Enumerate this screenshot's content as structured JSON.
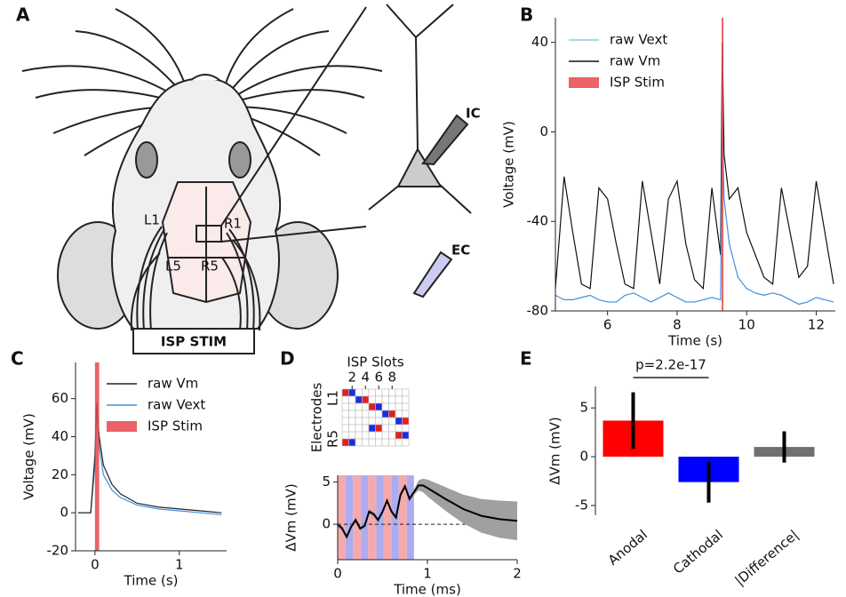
{
  "figure_diagram": {
    "panel_label": "A",
    "electrode_labels": [
      "L1",
      "R1",
      "L5",
      "R5"
    ],
    "stim_label": "ISP STIM",
    "ic_label": "IC",
    "ec_label": "EC"
  },
  "chart_data": [
    {
      "type": "line",
      "panel_label": "B",
      "x_label": "Time (s)",
      "y_label": "Voltage (mV)",
      "xlim": [
        4.5,
        12.55
      ],
      "ylim": [
        -80,
        51
      ],
      "xticks": [
        6,
        8,
        10,
        12
      ],
      "yticks": [
        -80,
        -40,
        0,
        40
      ],
      "legend": "upper left",
      "x": [
        4.5,
        4.75,
        5,
        5.25,
        5.5,
        5.75,
        6,
        6.25,
        6.5,
        6.75,
        7,
        7.25,
        7.5,
        7.75,
        8,
        8.25,
        8.5,
        8.75,
        9,
        9.25,
        9.3,
        9.35,
        9.5,
        9.75,
        10,
        10.25,
        10.5,
        10.75,
        11,
        11.25,
        11.5,
        11.75,
        12,
        12.25,
        12.5
      ],
      "series": [
        {
          "name": "raw Vext",
          "color": "#3d8fe0",
          "legend_color": "#8ccbe8",
          "values": [
            -73,
            -75,
            -75,
            -74,
            -73,
            -75,
            -76,
            -76,
            -73,
            -72,
            -74,
            -76,
            -74,
            -72,
            -74,
            -76,
            -76,
            -75,
            -74,
            -75,
            5,
            -30,
            -50,
            -65,
            -70,
            -72,
            -73,
            -72,
            -73,
            -75,
            -77,
            -76,
            -74,
            -75,
            -76
          ]
        },
        {
          "name": "raw Vm",
          "color": "#111111",
          "values": [
            -70,
            -20,
            -45,
            -68,
            -70,
            -25,
            -30,
            -50,
            -68,
            -70,
            -22,
            -45,
            -68,
            -30,
            -22,
            -50,
            -66,
            -70,
            -25,
            -55,
            40,
            -10,
            -30,
            -25,
            -45,
            -55,
            -65,
            -68,
            -25,
            -45,
            -65,
            -60,
            -22,
            -45,
            -68
          ]
        }
      ],
      "stim": {
        "name": "ISP Stim",
        "color": "#e8474c",
        "span": [
          9.28,
          9.32
        ]
      }
    },
    {
      "type": "line",
      "panel_label": "C",
      "x_label": "Time (s)",
      "y_label": "Voltage (mV)",
      "xlim": [
        -0.23,
        1.56
      ],
      "ylim": [
        -20,
        79
      ],
      "xticks": [
        0,
        1
      ],
      "yticks": [
        -20,
        0,
        20,
        40,
        60
      ],
      "legend": "upper right",
      "x": [
        -0.2,
        -0.05,
        0,
        0.02,
        0.05,
        0.1,
        0.2,
        0.3,
        0.5,
        0.75,
        1,
        1.25,
        1.5
      ],
      "series": [
        {
          "name": "raw Vm",
          "color": "#222222",
          "values": [
            0,
            0,
            30,
            58,
            40,
            25,
            15,
            10,
            5,
            3,
            2,
            1,
            0
          ]
        },
        {
          "name": "raw Vext",
          "color": "#3d8fe0",
          "values": [
            0,
            0,
            25,
            55,
            35,
            20,
            12,
            8,
            4,
            2,
            1,
            0,
            -1
          ]
        }
      ],
      "stim": {
        "name": "ISP Stim",
        "color": "#e8474c",
        "span": [
          0,
          0.05
        ]
      }
    },
    {
      "type": "grid",
      "panel_label": "D",
      "title": "ISP Slots",
      "y_label": "Electrodes",
      "xlim": [
        0.5,
        10.5
      ],
      "xticks": [
        2,
        4,
        6,
        8
      ],
      "row_labels": [
        "L1",
        null,
        null,
        null,
        null,
        null,
        null,
        "R5"
      ],
      "anodal_color": "#e0201c",
      "cathodal_color": "#1a2ee0",
      "cells": [
        [
          1,
          -1,
          0,
          0,
          0,
          0,
          0,
          0,
          0,
          0
        ],
        [
          0,
          0,
          -1,
          1,
          0,
          0,
          0,
          0,
          0,
          0
        ],
        [
          0,
          0,
          0,
          0,
          1,
          -1,
          0,
          0,
          0,
          0
        ],
        [
          0,
          0,
          0,
          0,
          0,
          0,
          -1,
          1,
          0,
          0
        ],
        [
          0,
          0,
          0,
          0,
          0,
          0,
          0,
          0,
          -1,
          1
        ],
        [
          0,
          0,
          0,
          0,
          -1,
          1,
          0,
          0,
          0,
          0
        ],
        [
          0,
          0,
          0,
          0,
          0,
          0,
          0,
          0,
          1,
          -1
        ],
        [
          1,
          -1,
          0,
          0,
          0,
          0,
          0,
          0,
          0,
          0
        ]
      ]
    },
    {
      "type": "line",
      "x_label": "Time (ms)",
      "y_label": "ΔVm (mV)",
      "xlim": [
        0,
        2
      ],
      "ylim": [
        -4.2,
        5.8
      ],
      "xticks": [
        0,
        1,
        2
      ],
      "yticks": [
        0,
        5
      ],
      "hline": 0,
      "stripes": {
        "edges": [
          0,
          0.09,
          0.17,
          0.26,
          0.34,
          0.43,
          0.51,
          0.6,
          0.68,
          0.77,
          0.85
        ],
        "colors": [
          "#f6a9ad",
          "#acacf2"
        ]
      },
      "x": [
        0,
        0.05,
        0.1,
        0.15,
        0.2,
        0.25,
        0.3,
        0.35,
        0.4,
        0.45,
        0.5,
        0.55,
        0.6,
        0.65,
        0.7,
        0.75,
        0.8,
        0.85,
        0.9,
        0.95,
        1,
        1.2,
        1.4,
        1.6,
        1.8,
        2
      ],
      "series": [
        {
          "color": "#000000",
          "band_color": "#a0a0a0",
          "values": [
            0,
            -0.5,
            -1.5,
            -0.3,
            0.5,
            -0.5,
            -0.2,
            1.5,
            1.2,
            0.5,
            1.5,
            2.8,
            1.5,
            0.8,
            3.5,
            4.5,
            3,
            3.8,
            4.6,
            4.6,
            4.3,
            3,
            1.8,
            1,
            0.6,
            0.4
          ],
          "errors": [
            0.3,
            0.3,
            0.3,
            0.3,
            0.3,
            0.3,
            0.3,
            0.3,
            0.3,
            0.3,
            0.3,
            0.3,
            0.3,
            0.3,
            0.3,
            0.3,
            0.3,
            0.3,
            0.6,
            0.8,
            1,
            1.4,
            1.7,
            2,
            2.2,
            2.3
          ]
        }
      ]
    },
    {
      "type": "bar",
      "panel_label": "E",
      "y_label": "ΔVm (mV)",
      "annotation": "p=2.2e-17",
      "categories": [
        "Anodal",
        "Cathodal",
        "|Difference|"
      ],
      "values": [
        3.7,
        -2.6,
        1.0
      ],
      "errors": [
        2.9,
        2.1,
        1.6
      ],
      "colors": [
        "#ff0000",
        "#0000ff",
        "#707070"
      ],
      "ylim": [
        -6,
        7.2
      ],
      "yticks": [
        -5,
        0,
        5
      ]
    }
  ]
}
